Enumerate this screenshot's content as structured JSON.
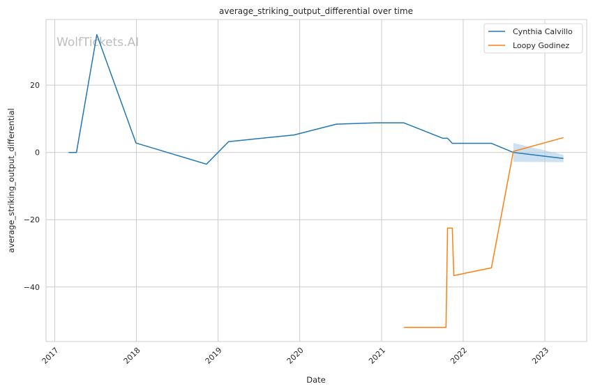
{
  "chart_data": {
    "type": "line",
    "title": "average_striking_output_differential over time",
    "xlabel": "Date",
    "ylabel": "average_striking_output_differential",
    "watermark": "WolfTickets.AI",
    "x_ticks": [
      "2017",
      "2018",
      "2019",
      "2020",
      "2021",
      "2022",
      "2023"
    ],
    "y_ticks": [
      20,
      0,
      -20,
      -40
    ],
    "xlim": [
      "2016-11-23",
      "2023-07-07"
    ],
    "ylim": [
      -56.2,
      39.5
    ],
    "grid": true,
    "legend_position": "top-right",
    "colors": {
      "Cynthia Calvillo": "#1f77b4",
      "Loopy Godinez": "#ff7f0e",
      "band": "#a6c8e6"
    },
    "series": [
      {
        "name": "Cynthia Calvillo",
        "points": [
          [
            "2017-03-04",
            0.0
          ],
          [
            "2017-04-08",
            0.0
          ],
          [
            "2017-07-08",
            35.0
          ],
          [
            "2017-12-30",
            2.8
          ],
          [
            "2018-11-10",
            -3.5
          ],
          [
            "2019-02-17",
            3.2
          ],
          [
            "2019-12-07",
            5.2
          ],
          [
            "2020-06-13",
            8.4
          ],
          [
            "2020-12-05",
            8.8
          ],
          [
            "2021-04-10",
            8.8
          ],
          [
            "2021-10-02",
            4.2
          ],
          [
            "2021-10-23",
            4.2
          ],
          [
            "2021-11-13",
            2.7
          ],
          [
            "2022-05-07",
            2.7
          ],
          [
            "2022-08-13",
            0.0
          ],
          [
            "2023-03-25",
            -1.8
          ]
        ]
      },
      {
        "name": "Loopy Godinez",
        "points": [
          [
            "2021-04-10",
            -52.0
          ],
          [
            "2021-10-16",
            -52.0
          ],
          [
            "2021-10-23",
            -22.5
          ],
          [
            "2021-11-13",
            -22.5
          ],
          [
            "2021-11-20",
            -36.6
          ],
          [
            "2022-05-07",
            -34.3
          ],
          [
            "2022-08-13",
            0.3
          ],
          [
            "2023-03-25",
            4.4
          ]
        ]
      }
    ],
    "band": {
      "series": "Cynthia Calvillo",
      "points": [
        [
          "2022-08-13",
          -2.8,
          2.8
        ],
        [
          "2023-03-25",
          -2.9,
          -0.7
        ]
      ]
    }
  }
}
